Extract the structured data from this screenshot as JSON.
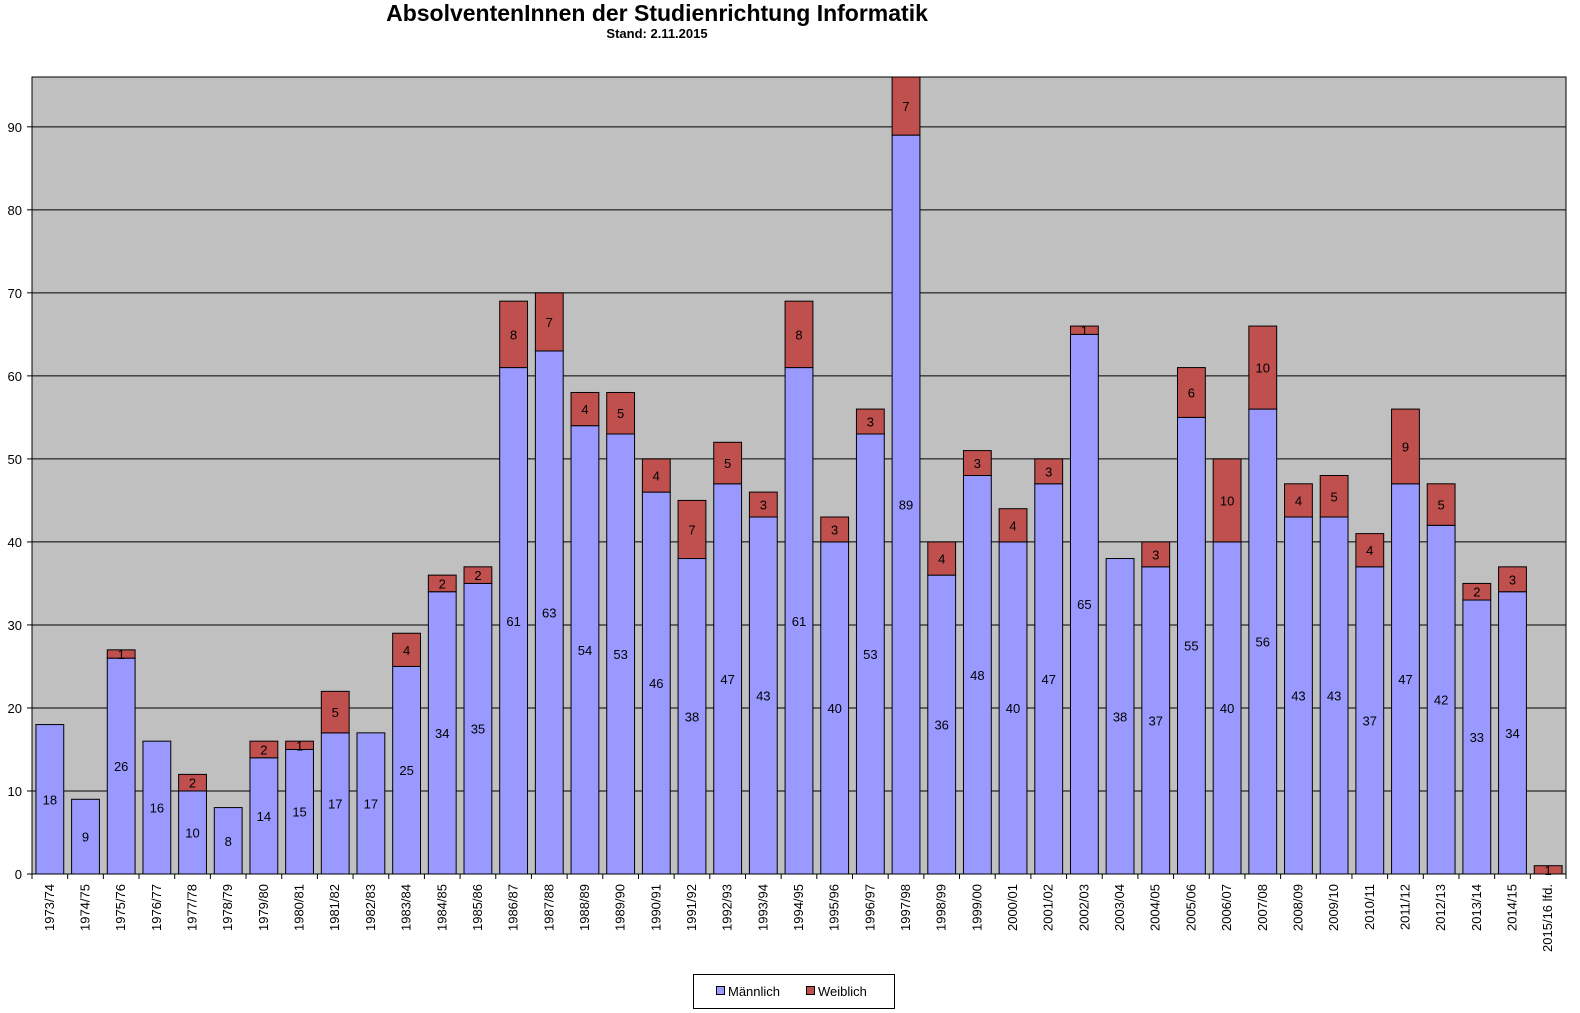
{
  "chart_data": {
    "type": "bar",
    "stacked": true,
    "title": "AbsolventenInnen der Studienrichtung Informatik",
    "subtitle": "Stand: 2.11.2015",
    "categories": [
      "1973/74",
      "1974/75",
      "1975/76",
      "1976/77",
      "1977/78",
      "1978/79",
      "1979/80",
      "1980/81",
      "1981/82",
      "1982/83",
      "1983/84",
      "1984/85",
      "1985/86",
      "1986/87",
      "1987/88",
      "1988/89",
      "1989/90",
      "1990/91",
      "1991/92",
      "1992/93",
      "1993/94",
      "1994/95",
      "1995/96",
      "1996/97",
      "1997/98",
      "1998/99",
      "1999/00",
      "2000/01",
      "2001/02",
      "2002/03",
      "2003/04",
      "2004/05",
      "2005/06",
      "2006/07",
      "2007/08",
      "2008/09",
      "2009/10",
      "2010/11",
      "2011/12",
      "2012/13",
      "2013/14",
      "2014/15",
      "2015/16 lfd."
    ],
    "series": [
      {
        "name": "Männlich",
        "color": "#9999ff",
        "values": [
          18,
          9,
          26,
          16,
          10,
          8,
          14,
          15,
          17,
          17,
          25,
          34,
          35,
          61,
          63,
          54,
          53,
          46,
          38,
          47,
          43,
          61,
          40,
          53,
          89,
          36,
          48,
          40,
          47,
          65,
          38,
          37,
          55,
          40,
          56,
          43,
          43,
          37,
          47,
          42,
          33,
          34,
          0
        ]
      },
      {
        "name": "Weiblich",
        "color": "#c0504d",
        "values": [
          0,
          0,
          1,
          0,
          2,
          0,
          2,
          1,
          5,
          0,
          4,
          2,
          2,
          8,
          7,
          4,
          5,
          4,
          7,
          5,
          3,
          8,
          3,
          3,
          7,
          4,
          3,
          4,
          3,
          1,
          0,
          3,
          6,
          10,
          10,
          4,
          5,
          4,
          9,
          5,
          2,
          3,
          1
        ]
      }
    ],
    "ylim": [
      0,
      96
    ],
    "yticks": [
      0,
      10,
      20,
      30,
      40,
      50,
      60,
      70,
      80,
      90
    ],
    "grid": true,
    "plot_background": "#c0c0c0",
    "legend_position": "bottom"
  }
}
